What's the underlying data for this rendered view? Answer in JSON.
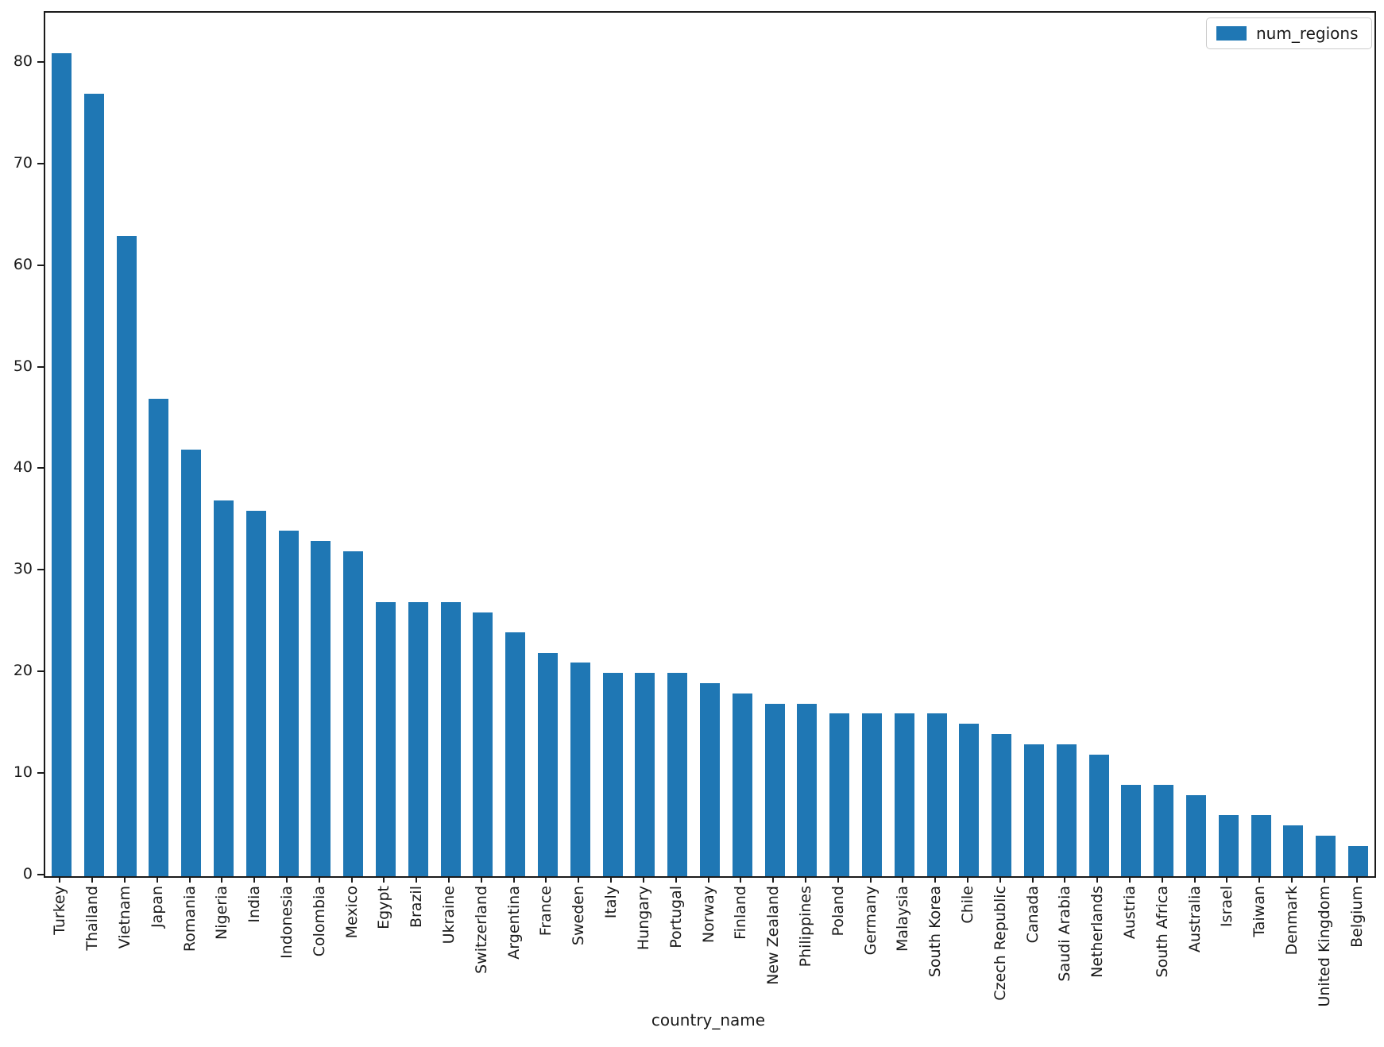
{
  "chart_data": {
    "type": "bar",
    "title": "",
    "xlabel": "country_name",
    "ylabel": "",
    "categories": [
      "Turkey",
      "Thailand",
      "Vietnam",
      "Japan",
      "Romania",
      "Nigeria",
      "India",
      "Indonesia",
      "Colombia",
      "Mexico",
      "Egypt",
      "Brazil",
      "Ukraine",
      "Switzerland",
      "Argentina",
      "France",
      "Sweden",
      "Italy",
      "Hungary",
      "Portugal",
      "Norway",
      "Finland",
      "New Zealand",
      "Philippines",
      "Poland",
      "Germany",
      "Malaysia",
      "South Korea",
      "Chile",
      "Czech Republic",
      "Canada",
      "Saudi Arabia",
      "Netherlands",
      "Austria",
      "South Africa",
      "Australia",
      "Israel",
      "Taiwan",
      "Denmark",
      "United Kingdom",
      "Belgium"
    ],
    "series": [
      {
        "name": "num_regions",
        "color": "#1f77b4",
        "values": [
          81,
          77,
          63,
          47,
          42,
          37,
          36,
          34,
          33,
          32,
          27,
          27,
          27,
          26,
          24,
          22,
          21,
          20,
          20,
          20,
          19,
          18,
          17,
          17,
          16,
          16,
          16,
          16,
          15,
          14,
          13,
          13,
          12,
          9,
          9,
          8,
          6,
          6,
          5,
          4,
          3
        ]
      }
    ],
    "yticks": [
      0,
      10,
      20,
      30,
      40,
      50,
      60,
      70,
      80
    ],
    "ylim": [
      0,
      85
    ],
    "x_tick_rotation": 90,
    "grid": false,
    "legend_position": "upper right",
    "background_color": "#ffffff",
    "spine_color": "#1a1a1a"
  }
}
